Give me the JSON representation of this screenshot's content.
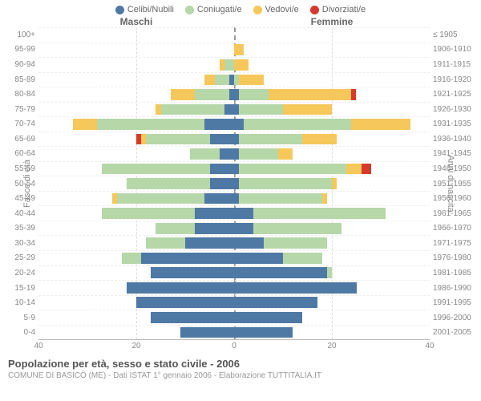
{
  "chart": {
    "type": "population-pyramid",
    "colors": {
      "celibi": "#4f79a5",
      "coniugati": "#b6d7a8",
      "vedovi": "#f6c75a",
      "divorziati": "#d63a2b",
      "grid": "#dddddd",
      "center_line": "#999999",
      "text": "#888888",
      "background": "#ffffff"
    },
    "legend": [
      {
        "label": "Celibi/Nubili",
        "color_key": "celibi"
      },
      {
        "label": "Coniugati/e",
        "color_key": "coniugati"
      },
      {
        "label": "Vedovi/e",
        "color_key": "vedovi"
      },
      {
        "label": "Divorziati/e",
        "color_key": "divorziati"
      }
    ],
    "side_labels": {
      "male": "Maschi",
      "female": "Femmine"
    },
    "y_left_title": "Fasce di età",
    "y_right_title": "Anni di nascita",
    "x_max": 40,
    "x_ticks": [
      40,
      20,
      0,
      20,
      40
    ],
    "rows": [
      {
        "age": "100+",
        "birth": "≤ 1905",
        "m": {
          "cel": 0,
          "con": 0,
          "ved": 0,
          "div": 0
        },
        "f": {
          "cel": 0,
          "con": 0,
          "ved": 0,
          "div": 0
        }
      },
      {
        "age": "95-99",
        "birth": "1906-1910",
        "m": {
          "cel": 0,
          "con": 0,
          "ved": 0,
          "div": 0
        },
        "f": {
          "cel": 0,
          "con": 0,
          "ved": 2,
          "div": 0
        }
      },
      {
        "age": "90-94",
        "birth": "1911-1915",
        "m": {
          "cel": 0,
          "con": 2,
          "ved": 1,
          "div": 0
        },
        "f": {
          "cel": 0,
          "con": 0,
          "ved": 3,
          "div": 0
        }
      },
      {
        "age": "85-89",
        "birth": "1916-1920",
        "m": {
          "cel": 1,
          "con": 3,
          "ved": 2,
          "div": 0
        },
        "f": {
          "cel": 0,
          "con": 1,
          "ved": 5,
          "div": 0
        }
      },
      {
        "age": "80-84",
        "birth": "1921-1925",
        "m": {
          "cel": 1,
          "con": 7,
          "ved": 5,
          "div": 0
        },
        "f": {
          "cel": 1,
          "con": 6,
          "ved": 17,
          "div": 1
        }
      },
      {
        "age": "75-79",
        "birth": "1926-1930",
        "m": {
          "cel": 2,
          "con": 13,
          "ved": 1,
          "div": 0
        },
        "f": {
          "cel": 1,
          "con": 9,
          "ved": 10,
          "div": 0
        }
      },
      {
        "age": "70-74",
        "birth": "1931-1935",
        "m": {
          "cel": 6,
          "con": 22,
          "ved": 5,
          "div": 0
        },
        "f": {
          "cel": 2,
          "con": 22,
          "ved": 12,
          "div": 0
        }
      },
      {
        "age": "65-69",
        "birth": "1936-1940",
        "m": {
          "cel": 5,
          "con": 13,
          "ved": 1,
          "div": 1
        },
        "f": {
          "cel": 1,
          "con": 13,
          "ved": 7,
          "div": 0
        }
      },
      {
        "age": "60-64",
        "birth": "1941-1945",
        "m": {
          "cel": 3,
          "con": 6,
          "ved": 0,
          "div": 0
        },
        "f": {
          "cel": 1,
          "con": 8,
          "ved": 3,
          "div": 0
        }
      },
      {
        "age": "55-59",
        "birth": "1946-1950",
        "m": {
          "cel": 5,
          "con": 22,
          "ved": 0,
          "div": 0
        },
        "f": {
          "cel": 1,
          "con": 22,
          "ved": 3,
          "div": 2
        }
      },
      {
        "age": "50-54",
        "birth": "1951-1955",
        "m": {
          "cel": 5,
          "con": 17,
          "ved": 0,
          "div": 0
        },
        "f": {
          "cel": 1,
          "con": 19,
          "ved": 1,
          "div": 0
        }
      },
      {
        "age": "45-49",
        "birth": "1956-1960",
        "m": {
          "cel": 6,
          "con": 18,
          "ved": 1,
          "div": 0
        },
        "f": {
          "cel": 1,
          "con": 17,
          "ved": 1,
          "div": 0
        }
      },
      {
        "age": "40-44",
        "birth": "1961-1965",
        "m": {
          "cel": 8,
          "con": 19,
          "ved": 0,
          "div": 0
        },
        "f": {
          "cel": 4,
          "con": 27,
          "ved": 0,
          "div": 0
        }
      },
      {
        "age": "35-39",
        "birth": "1966-1970",
        "m": {
          "cel": 8,
          "con": 8,
          "ved": 0,
          "div": 0
        },
        "f": {
          "cel": 4,
          "con": 18,
          "ved": 0,
          "div": 0
        }
      },
      {
        "age": "30-34",
        "birth": "1971-1975",
        "m": {
          "cel": 10,
          "con": 8,
          "ved": 0,
          "div": 0
        },
        "f": {
          "cel": 6,
          "con": 13,
          "ved": 0,
          "div": 0
        }
      },
      {
        "age": "25-29",
        "birth": "1976-1980",
        "m": {
          "cel": 19,
          "con": 4,
          "ved": 0,
          "div": 0
        },
        "f": {
          "cel": 10,
          "con": 8,
          "ved": 0,
          "div": 0
        }
      },
      {
        "age": "20-24",
        "birth": "1981-1985",
        "m": {
          "cel": 17,
          "con": 0,
          "ved": 0,
          "div": 0
        },
        "f": {
          "cel": 19,
          "con": 1,
          "ved": 0,
          "div": 0
        }
      },
      {
        "age": "15-19",
        "birth": "1986-1990",
        "m": {
          "cel": 22,
          "con": 0,
          "ved": 0,
          "div": 0
        },
        "f": {
          "cel": 25,
          "con": 0,
          "ved": 0,
          "div": 0
        }
      },
      {
        "age": "10-14",
        "birth": "1991-1995",
        "m": {
          "cel": 20,
          "con": 0,
          "ved": 0,
          "div": 0
        },
        "f": {
          "cel": 17,
          "con": 0,
          "ved": 0,
          "div": 0
        }
      },
      {
        "age": "5-9",
        "birth": "1996-2000",
        "m": {
          "cel": 17,
          "con": 0,
          "ved": 0,
          "div": 0
        },
        "f": {
          "cel": 14,
          "con": 0,
          "ved": 0,
          "div": 0
        }
      },
      {
        "age": "0-4",
        "birth": "2001-2005",
        "m": {
          "cel": 11,
          "con": 0,
          "ved": 0,
          "div": 0
        },
        "f": {
          "cel": 12,
          "con": 0,
          "ved": 0,
          "div": 0
        }
      }
    ]
  },
  "footer": {
    "title": "Popolazione per età, sesso e stato civile - 2006",
    "subtitle": "COMUNE DI BASICÒ (ME) - Dati ISTAT 1° gennaio 2006 - Elaborazione TUTTITALIA.IT"
  }
}
